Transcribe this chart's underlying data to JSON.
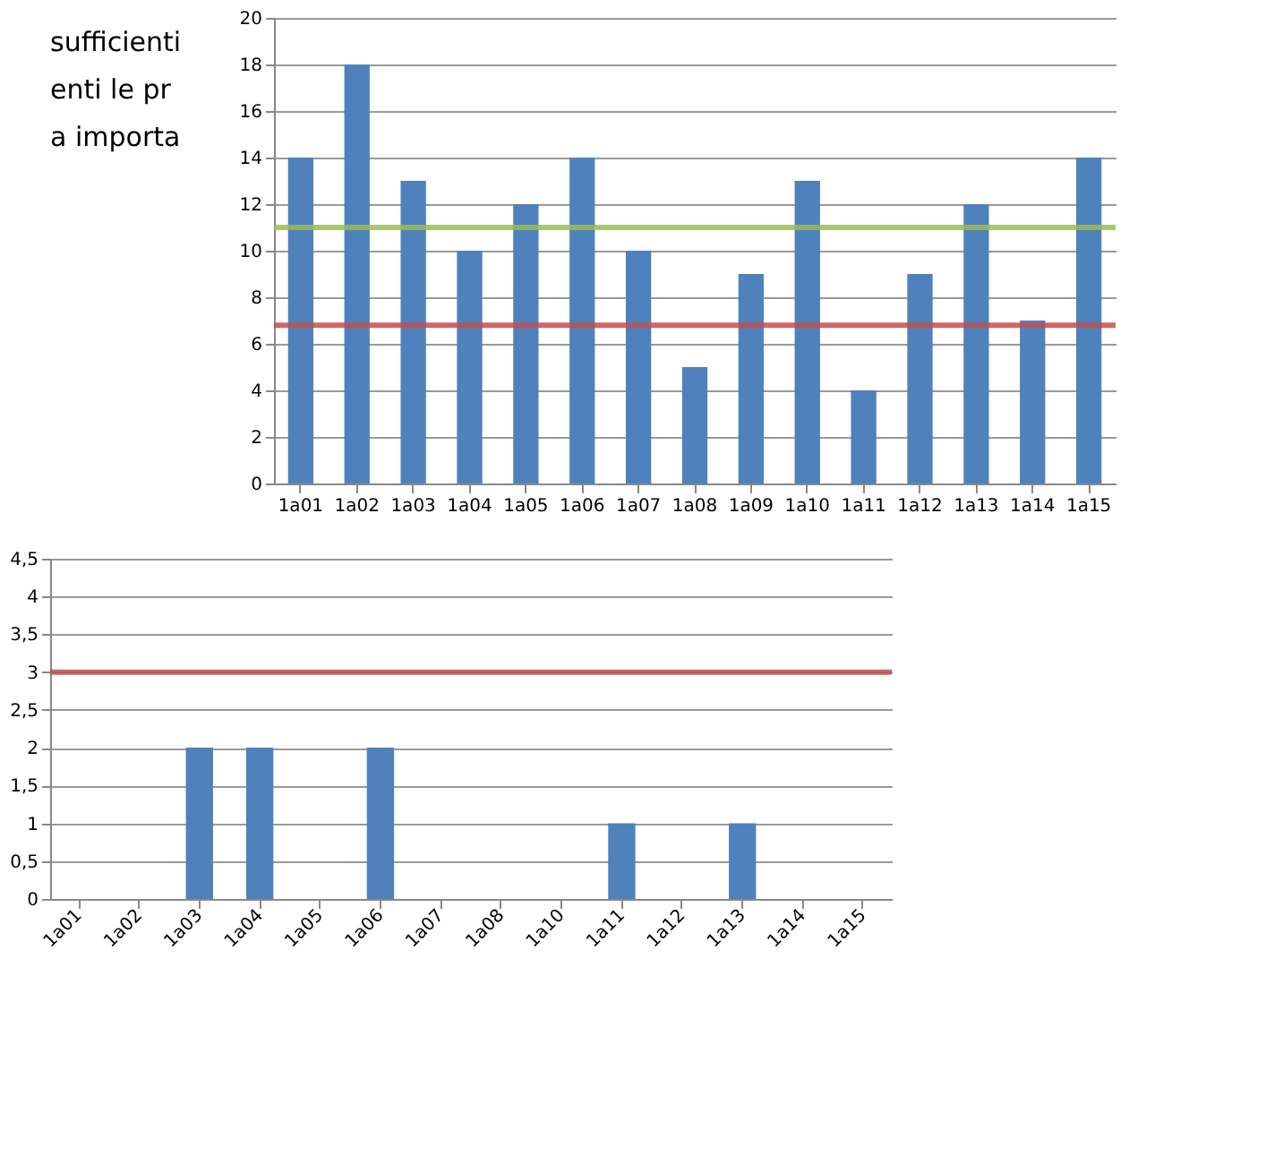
{
  "chart_data": [
    {
      "type": "bar",
      "categories": [
        "1a01",
        "1a02",
        "1a03",
        "1a04",
        "1a05",
        "1a06",
        "1a07",
        "1a08",
        "1a09",
        "1a10",
        "1a11",
        "1a12",
        "1a13",
        "1a14",
        "1a15"
      ],
      "series": [
        {
          "color": "#4f81bd",
          "values": [
            14,
            18,
            13,
            10,
            12,
            14,
            10,
            5,
            9,
            13,
            4,
            9,
            12,
            7,
            14
          ]
        }
      ],
      "ylim": [
        0,
        20
      ],
      "yticks": [
        0,
        2,
        4,
        6,
        8,
        10,
        12,
        14,
        16,
        18,
        20
      ],
      "grid": "y",
      "ref_lines": [
        {
          "axis": "y",
          "value": 11,
          "color": "#9bbb59"
        },
        {
          "axis": "y",
          "value": 6.8,
          "color": "#c0504d"
        }
      ],
      "annotations": [
        "sufficienti",
        "enti le pr",
        "a importa"
      ]
    },
    {
      "type": "bar",
      "categories": [
        "1a01",
        "1a02",
        "1a03",
        "1a04",
        "1a05",
        "1a06",
        "1a07",
        "1a08",
        "1a10",
        "1a11",
        "1a12",
        "1a13",
        "1a14",
        "1a15"
      ],
      "series": [
        {
          "color": "#4f81bd",
          "values": [
            0,
            0,
            2,
            2,
            0,
            2,
            null,
            0,
            0,
            1,
            null,
            1,
            null,
            0
          ]
        }
      ],
      "ylim": [
        0,
        4.5
      ],
      "yticks": [
        0,
        {
          "value": 0.5,
          "label": "0,5"
        },
        1,
        {
          "value": 1.5,
          "label": "1,5"
        },
        2,
        {
          "value": 2.5,
          "label": "2,5"
        },
        3,
        {
          "value": 3.5,
          "label": "3,5"
        },
        4,
        {
          "value": 4.5,
          "label": "4,5"
        }
      ],
      "grid": "y",
      "ref_lines": [
        {
          "axis": "y",
          "value": 3,
          "color": "#c0504d"
        }
      ]
    }
  ]
}
